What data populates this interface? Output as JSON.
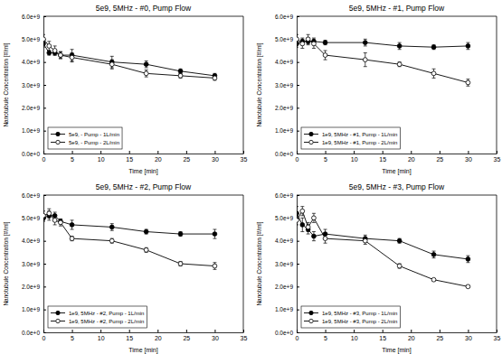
{
  "chart_data": [
    {
      "type": "line",
      "title": "5e9, 5MHz - #0, Pump Flow",
      "x_label": "Time [min]",
      "y_label": "Nanotubule Concentration [#/ml]",
      "x": [
        0,
        1,
        2,
        3,
        5,
        12,
        18,
        24,
        30
      ],
      "series": [
        {
          "name": "5e9, - Pump - 1L/min",
          "color": "#000000",
          "marker": "filled-circle",
          "values": [
            4800000000,
            4400000000,
            4400000000,
            4300000000,
            4300000000,
            4000000000,
            3900000000,
            3600000000,
            3400000000
          ],
          "errors": [
            150000000,
            100000000,
            100000000,
            150000000,
            250000000,
            250000000,
            150000000,
            100000000,
            100000000
          ]
        },
        {
          "name": "5e9, - Pump - 2L/min",
          "color": "#000000",
          "marker": "open-circle",
          "values": [
            5000000000,
            4700000000,
            4500000000,
            4300000000,
            4200000000,
            3900000000,
            3500000000,
            3400000000,
            3300000000
          ],
          "errors": [
            200000000,
            200000000,
            200000000,
            150000000,
            200000000,
            200000000,
            150000000,
            100000000,
            100000000
          ]
        }
      ],
      "xlim": [
        0,
        35
      ],
      "ylim": [
        0,
        6000000000
      ],
      "xticks": [
        0,
        5,
        10,
        15,
        20,
        25,
        30,
        35
      ],
      "yticks": [
        {
          "value": 0,
          "label": "0.0e+0"
        },
        {
          "value": 1000000000,
          "label": "1.0e+9"
        },
        {
          "value": 2000000000,
          "label": "2.0e+9"
        },
        {
          "value": 3000000000,
          "label": "3.0e+9"
        },
        {
          "value": 4000000000,
          "label": "4.0e+9"
        },
        {
          "value": 5000000000,
          "label": "5.0e+9"
        },
        {
          "value": 6000000000,
          "label": "6.0e+9"
        }
      ],
      "grid": false,
      "legend": "lower left"
    },
    {
      "type": "line",
      "title": "5e9, 5MHz - #1, Pump Flow",
      "x_label": "Time [min]",
      "y_label": "Nanotubule Concentration [#/ml]",
      "x": [
        0,
        1,
        2,
        3,
        5,
        12,
        18,
        24,
        30
      ],
      "series": [
        {
          "name": "1e9, 5MHz - #1, Pump - 1L/min",
          "color": "#000000",
          "marker": "filled-circle",
          "values": [
            4800000000,
            4900000000,
            4900000000,
            4900000000,
            4850000000,
            4850000000,
            4700000000,
            4650000000,
            4700000000
          ],
          "errors": [
            150000000,
            150000000,
            150000000,
            150000000,
            100000000,
            150000000,
            150000000,
            100000000,
            150000000
          ]
        },
        {
          "name": "1e9, 5MHz - #1, Pump - 2L/min",
          "color": "#000000",
          "marker": "open-circle",
          "values": [
            5000000000,
            4800000000,
            5000000000,
            4800000000,
            4300000000,
            4100000000,
            3900000000,
            3500000000,
            3100000000
          ],
          "errors": [
            200000000,
            200000000,
            200000000,
            200000000,
            200000000,
            300000000,
            100000000,
            200000000,
            150000000
          ]
        }
      ],
      "xlim": [
        0,
        35
      ],
      "ylim": [
        0,
        6000000000
      ],
      "xticks": [
        0,
        5,
        10,
        15,
        20,
        25,
        30,
        35
      ],
      "yticks": [
        {
          "value": 0,
          "label": "0.0e+0"
        },
        {
          "value": 1000000000,
          "label": "1.0e+9"
        },
        {
          "value": 2000000000,
          "label": "2.0e+9"
        },
        {
          "value": 3000000000,
          "label": "3.0e+9"
        },
        {
          "value": 4000000000,
          "label": "4.0e+9"
        },
        {
          "value": 5000000000,
          "label": "5.0e+9"
        },
        {
          "value": 6000000000,
          "label": "6.0e+9"
        }
      ],
      "grid": false,
      "legend": "lower left"
    },
    {
      "type": "line",
      "title": "5e9, 5MHz - #2, Pump Flow",
      "x_label": "Time [min]",
      "y_label": "Nanotubule Concentration [#/ml]",
      "x": [
        0,
        1,
        2,
        3,
        5,
        12,
        18,
        24,
        30
      ],
      "series": [
        {
          "name": "1e9, 5MHz - #2, Pump - 1L/min",
          "color": "#000000",
          "marker": "filled-circle",
          "values": [
            5000000000,
            5100000000,
            5100000000,
            4850000000,
            4700000000,
            4600000000,
            4400000000,
            4300000000,
            4300000000
          ],
          "errors": [
            150000000,
            200000000,
            150000000,
            100000000,
            200000000,
            150000000,
            100000000,
            100000000,
            200000000
          ]
        },
        {
          "name": "1e9, 5MHz - #2, Pump - 2L/min",
          "color": "#000000",
          "marker": "open-circle",
          "values": [
            5100000000,
            5200000000,
            4900000000,
            4800000000,
            4100000000,
            4000000000,
            3600000000,
            3000000000,
            2900000000
          ],
          "errors": [
            200000000,
            200000000,
            200000000,
            150000000,
            100000000,
            100000000,
            100000000,
            100000000,
            150000000
          ]
        }
      ],
      "xlim": [
        0,
        35
      ],
      "ylim": [
        0,
        6000000000
      ],
      "xticks": [
        0,
        5,
        10,
        15,
        20,
        25,
        30,
        35
      ],
      "yticks": [
        {
          "value": 0,
          "label": "0.0e+0"
        },
        {
          "value": 1000000000,
          "label": "1.0e+9"
        },
        {
          "value": 2000000000,
          "label": "2.0e+9"
        },
        {
          "value": 3000000000,
          "label": "3.0e+9"
        },
        {
          "value": 4000000000,
          "label": "4.0e+9"
        },
        {
          "value": 5000000000,
          "label": "5.0e+9"
        },
        {
          "value": 6000000000,
          "label": "6.0e+9"
        }
      ],
      "grid": false,
      "legend": "lower left"
    },
    {
      "type": "line",
      "title": "5e9, 5MHz - #3, Pump Flow",
      "x_label": "Time [min]",
      "y_label": "Nanotubule Concentration [#/ml]",
      "x": [
        0,
        1,
        2,
        3,
        5,
        12,
        18,
        24,
        30
      ],
      "series": [
        {
          "name": "1e9, 5MHz - #3, Pump - 1L/min",
          "color": "#000000",
          "marker": "filled-circle",
          "values": [
            5200000000,
            4700000000,
            4500000000,
            4200000000,
            4300000000,
            4100000000,
            4000000000,
            3400000000,
            3200000000
          ],
          "errors": [
            300000000,
            300000000,
            200000000,
            200000000,
            200000000,
            150000000,
            100000000,
            150000000,
            150000000
          ]
        },
        {
          "name": "1e9, 5MHz - #3, Pump - 2L/min",
          "color": "#000000",
          "marker": "open-circle",
          "values": [
            4900000000,
            5300000000,
            4600000000,
            5000000000,
            4100000000,
            4000000000,
            2900000000,
            2300000000,
            2000000000
          ],
          "errors": [
            200000000,
            200000000,
            200000000,
            200000000,
            200000000,
            150000000,
            100000000,
            50000000,
            50000000
          ]
        }
      ],
      "xlim": [
        0,
        35
      ],
      "ylim": [
        0,
        6000000000
      ],
      "xticks": [
        0,
        5,
        10,
        15,
        20,
        25,
        30,
        35
      ],
      "yticks": [
        {
          "value": 0,
          "label": "0.0e+0"
        },
        {
          "value": 1000000000,
          "label": "1.0e+9"
        },
        {
          "value": 2000000000,
          "label": "2.0e+9"
        },
        {
          "value": 3000000000,
          "label": "3.0e+9"
        },
        {
          "value": 4000000000,
          "label": "4.0e+9"
        },
        {
          "value": 5000000000,
          "label": "5.0e+9"
        },
        {
          "value": 6000000000,
          "label": "6.0e+9"
        }
      ],
      "grid": false,
      "legend": "lower left"
    }
  ]
}
